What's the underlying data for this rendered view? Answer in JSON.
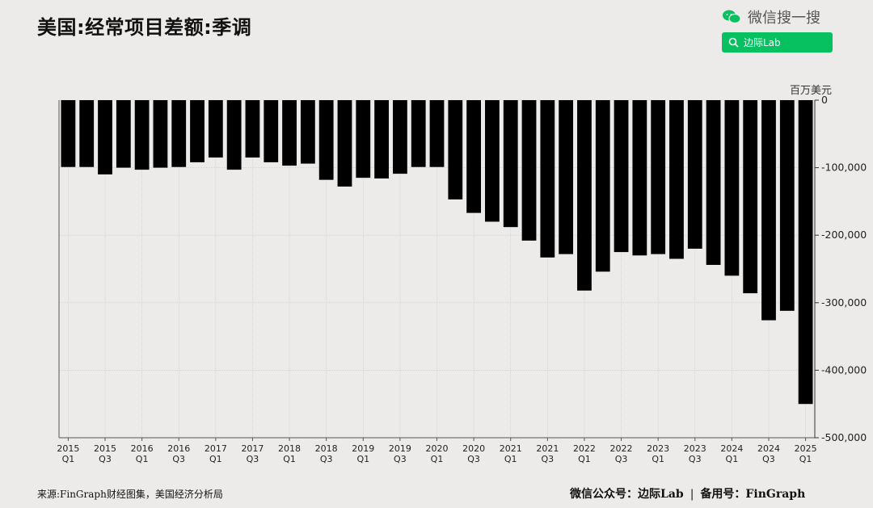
{
  "title": "美国:经常项目差额:季调",
  "wechat": {
    "brand_text": "微信搜一搜",
    "search_label": "边际Lab",
    "brand_color": "#07c160",
    "icons": [
      "wechat-icon",
      "search-icon"
    ]
  },
  "footer": {
    "source": "来源:FinGraph财经图集，美国经济分析局",
    "account_label": "微信公众号：边际Lab",
    "separator": "|",
    "backup_label": "备用号：FinGraph"
  },
  "chart_data": {
    "type": "bar",
    "title": "美国:经常项目差额:季调",
    "unit": "百万美元",
    "ylim": [
      -500000,
      0
    ],
    "yticks": [
      0,
      -100000,
      -200000,
      -300000,
      -400000,
      -500000
    ],
    "ytick_labels": [
      "0",
      "-100,000",
      "-200,000",
      "-300,000",
      "-400,000",
      "-500,000"
    ],
    "y_axis_position": "right",
    "grid": true,
    "bar_color": "#000000",
    "categories": [
      "2015Q1",
      "2015Q2",
      "2015Q3",
      "2015Q4",
      "2016Q1",
      "2016Q2",
      "2016Q3",
      "2016Q4",
      "2017Q1",
      "2017Q2",
      "2017Q3",
      "2017Q4",
      "2018Q1",
      "2018Q2",
      "2018Q3",
      "2018Q4",
      "2019Q1",
      "2019Q2",
      "2019Q3",
      "2019Q4",
      "2020Q1",
      "2020Q2",
      "2020Q3",
      "2020Q4",
      "2021Q1",
      "2021Q2",
      "2021Q3",
      "2021Q4",
      "2022Q1",
      "2022Q2",
      "2022Q3",
      "2022Q4",
      "2023Q1",
      "2023Q2",
      "2023Q3",
      "2023Q4",
      "2024Q1",
      "2024Q2",
      "2024Q3",
      "2024Q4",
      "2025Q1"
    ],
    "values": [
      -99000,
      -99000,
      -110000,
      -100000,
      -103000,
      -100000,
      -99000,
      -92000,
      -85000,
      -103000,
      -85000,
      -92000,
      -97000,
      -94000,
      -118000,
      -128000,
      -115000,
      -116000,
      -109000,
      -99000,
      -99000,
      -147000,
      -167000,
      -180000,
      -188000,
      -208000,
      -233000,
      -228000,
      -282000,
      -254000,
      -225000,
      -230000,
      -228000,
      -235000,
      -220000,
      -244000,
      -260000,
      -286000,
      -326000,
      -312000,
      -450000
    ],
    "x_tick_labels": [
      {
        "year": "2015",
        "quarter": "Q1"
      },
      {
        "year": "2015",
        "quarter": "Q3"
      },
      {
        "year": "2016",
        "quarter": "Q1"
      },
      {
        "year": "2016",
        "quarter": "Q3"
      },
      {
        "year": "2017",
        "quarter": "Q1"
      },
      {
        "year": "2017",
        "quarter": "Q3"
      },
      {
        "year": "2018",
        "quarter": "Q1"
      },
      {
        "year": "2018",
        "quarter": "Q3"
      },
      {
        "year": "2019",
        "quarter": "Q1"
      },
      {
        "year": "2019",
        "quarter": "Q3"
      },
      {
        "year": "2020",
        "quarter": "Q1"
      },
      {
        "year": "2020",
        "quarter": "Q3"
      },
      {
        "year": "2021",
        "quarter": "Q1"
      },
      {
        "year": "2021",
        "quarter": "Q3"
      },
      {
        "year": "2022",
        "quarter": "Q1"
      },
      {
        "year": "2022",
        "quarter": "Q3"
      },
      {
        "year": "2023",
        "quarter": "Q1"
      },
      {
        "year": "2023",
        "quarter": "Q3"
      },
      {
        "year": "2024",
        "quarter": "Q1"
      },
      {
        "year": "2024",
        "quarter": "Q3"
      },
      {
        "year": "2025",
        "quarter": "Q1"
      }
    ]
  }
}
